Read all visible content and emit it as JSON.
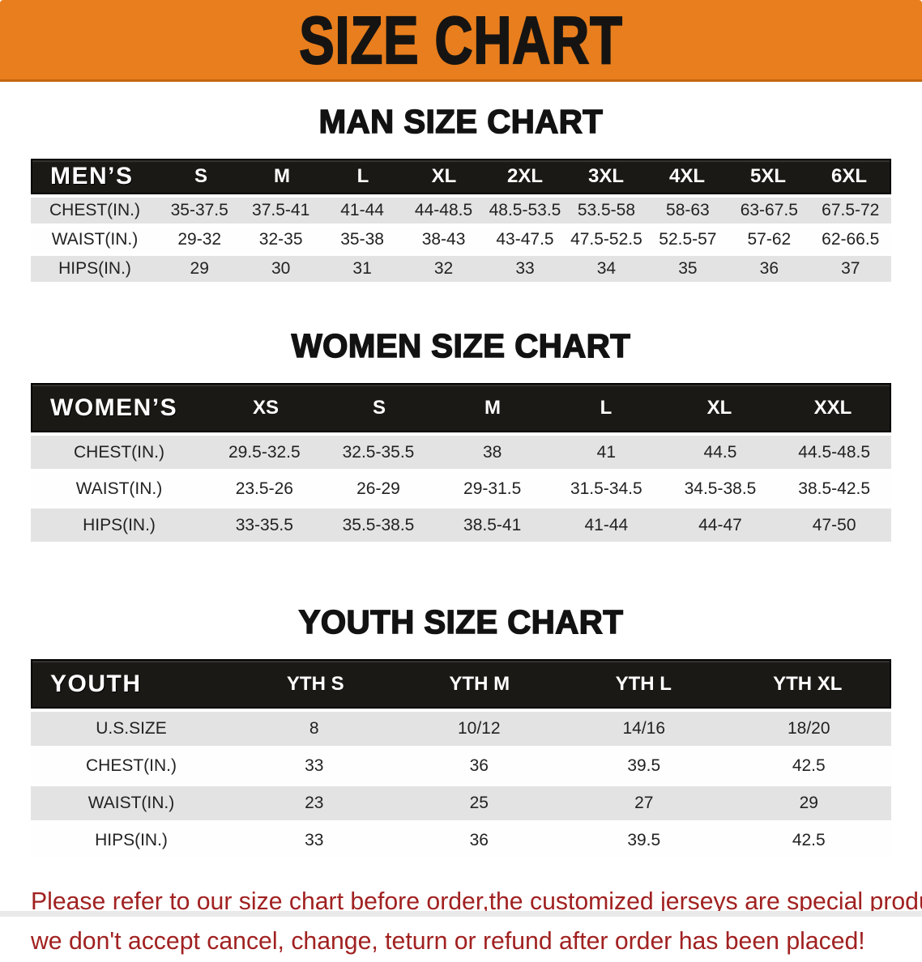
{
  "banner": {
    "title": "SIZE CHART",
    "bg_color": "#E87E1D",
    "text_color": "#161412"
  },
  "colors": {
    "header_bar": "#1b1915",
    "row_shade": "#e3e3e3",
    "footer_red": "#a12121"
  },
  "sections": {
    "men": {
      "heading": "MAN SIZE CHART",
      "table": {
        "header": [
          "MEN’S",
          "S",
          "M",
          "L",
          "XL",
          "2XL",
          "3XL",
          "4XL",
          "5XL",
          "6XL"
        ],
        "rows": [
          [
            "CHEST(IN.)",
            "35-37.5",
            "37.5-41",
            "41-44",
            "44-48.5",
            "48.5-53.5",
            "53.5-58",
            "58-63",
            "63-67.5",
            "67.5-72"
          ],
          [
            "WAIST(IN.)",
            "29-32",
            "32-35",
            "35-38",
            "38-43",
            "43-47.5",
            "47.5-52.5",
            "52.5-57",
            "57-62",
            "62-66.5"
          ],
          [
            "HIPS(IN.)",
            "29",
            "30",
            "31",
            "32",
            "33",
            "34",
            "35",
            "36",
            "37"
          ]
        ]
      }
    },
    "women": {
      "heading": "WOMEN SIZE CHART",
      "table": {
        "header": [
          "WOMEN’S",
          "XS",
          "S",
          "M",
          "L",
          "XL",
          "XXL"
        ],
        "rows": [
          [
            "CHEST(IN.)",
            "29.5-32.5",
            "32.5-35.5",
            "38",
            "41",
            "44.5",
            "44.5-48.5"
          ],
          [
            "WAIST(IN.)",
            "23.5-26",
            "26-29",
            "29-31.5",
            "31.5-34.5",
            "34.5-38.5",
            "38.5-42.5"
          ],
          [
            "HIPS(IN.)",
            "33-35.5",
            "35.5-38.5",
            "38.5-41",
            "41-44",
            "44-47",
            "47-50"
          ]
        ]
      }
    },
    "youth": {
      "heading": "YOUTH SIZE CHART",
      "table": {
        "header": [
          "YOUTH",
          "YTH S",
          "YTH M",
          "YTH L",
          "YTH XL"
        ],
        "rows": [
          [
            "U.S.SIZE",
            "8",
            "10/12",
            "14/16",
            "18/20"
          ],
          [
            "CHEST(IN.)",
            "33",
            "36",
            "39.5",
            "42.5"
          ],
          [
            "WAIST(IN.)",
            "23",
            "25",
            "27",
            "29"
          ],
          [
            "HIPS(IN.)",
            "33",
            "36",
            "39.5",
            "42.5"
          ]
        ]
      }
    }
  },
  "footer": {
    "line1": "Please refer to our size chart before order,the customized jerseys are special products,",
    "line2": "we don't accept cancel, change, teturn or refund after order has been placed!"
  }
}
